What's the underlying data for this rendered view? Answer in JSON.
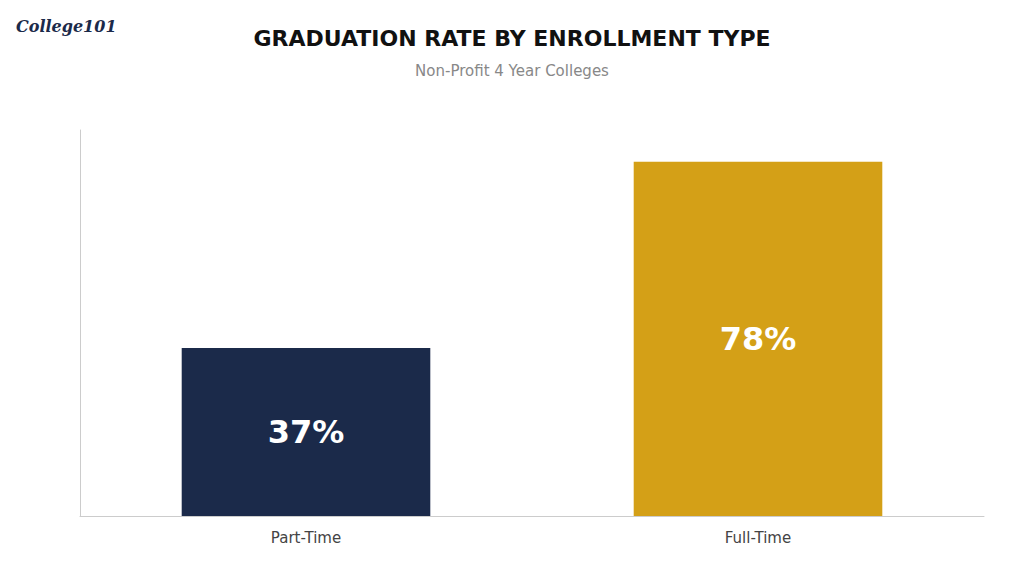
{
  "chart_data": {
    "type": "bar",
    "title": "GRADUATION RATE BY ENROLLMENT TYPE",
    "subtitle": "Non-Profit 4 Year Colleges",
    "categories": [
      "Part-Time",
      "Full-Time"
    ],
    "values": [
      37,
      78
    ],
    "value_labels": [
      "37%",
      "78%"
    ],
    "data_labels": true,
    "colors": [
      "#1b2a4a",
      "#d4a017"
    ],
    "ylim": [
      0,
      85
    ],
    "tick_labels": "x",
    "grid": false,
    "annotations": [
      "College101"
    ]
  }
}
